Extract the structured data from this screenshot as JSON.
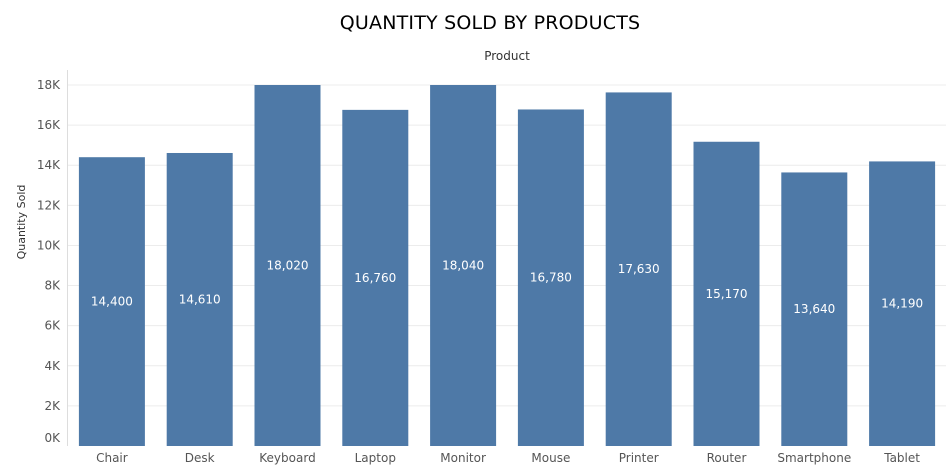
{
  "chart_data": {
    "type": "bar",
    "title": "QUANTITY SOLD BY PRODUCTS",
    "column_header": "Product",
    "xlabel": "",
    "ylabel": "Quantity Sold",
    "categories": [
      "Chair",
      "Desk",
      "Keyboard",
      "Laptop",
      "Monitor",
      "Mouse",
      "Printer",
      "Router",
      "Smartphone",
      "Tablet"
    ],
    "values": [
      14400,
      14610,
      18020,
      16760,
      18040,
      16780,
      17630,
      15170,
      13640,
      14190
    ],
    "value_labels": [
      "14,400",
      "14,610",
      "18,020",
      "16,760",
      "18,040",
      "16,780",
      "17,630",
      "15,170",
      "13,640",
      "14,190"
    ],
    "ylim": [
      0,
      18000
    ],
    "yticks": [
      0,
      2000,
      4000,
      6000,
      8000,
      10000,
      12000,
      14000,
      16000,
      18000
    ],
    "ytick_labels": [
      "0K",
      "2K",
      "4K",
      "6K",
      "8K",
      "10K",
      "12K",
      "14K",
      "16K",
      "18K"
    ],
    "grid": true,
    "bar_color": "#4e79a7",
    "label_color": "#ffffff"
  }
}
